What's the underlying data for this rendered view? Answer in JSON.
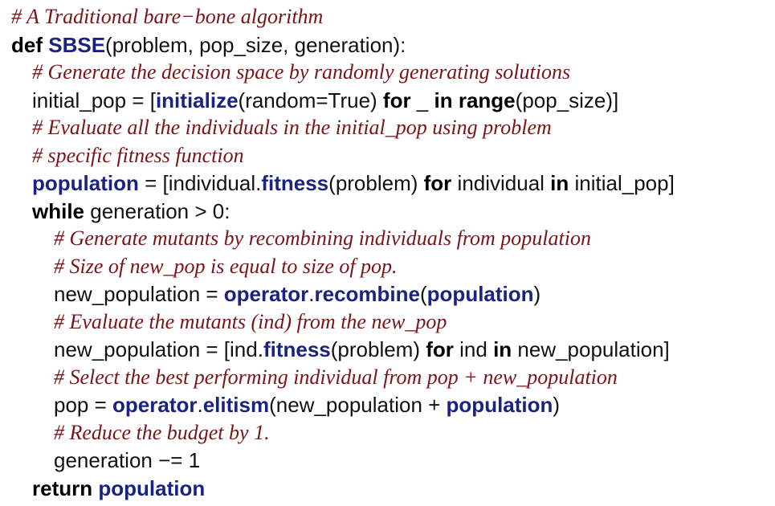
{
  "code": {
    "lines": [
      {
        "kind": "comment",
        "indent": 0,
        "text": "# A Traditional bare−bone algorithm"
      },
      {
        "kind": "code",
        "indent": 0,
        "tokens": [
          {
            "t": "def",
            "s": "kw"
          },
          {
            "t": " ",
            "s": "plain"
          },
          {
            "t": "SBSE",
            "s": "fn"
          },
          {
            "t": "(problem, pop_size, generation):",
            "s": "plain"
          }
        ]
      },
      {
        "kind": "comment",
        "indent": 1,
        "text": "# Generate the decision space by randomly generating solutions"
      },
      {
        "kind": "code",
        "indent": 1,
        "tokens": [
          {
            "t": "initial_pop = [",
            "s": "plain"
          },
          {
            "t": "initialize",
            "s": "fn"
          },
          {
            "t": "(random=True) ",
            "s": "plain"
          },
          {
            "t": "for",
            "s": "kw"
          },
          {
            "t": " _ ",
            "s": "plain"
          },
          {
            "t": "in",
            "s": "kw"
          },
          {
            "t": " ",
            "s": "plain"
          },
          {
            "t": "range",
            "s": "kw"
          },
          {
            "t": "(pop_size)]",
            "s": "plain"
          }
        ]
      },
      {
        "kind": "comment",
        "indent": 1,
        "text": "# Evaluate all the individuals in the initial_pop using problem"
      },
      {
        "kind": "comment",
        "indent": 1,
        "text": "# specific fitness function"
      },
      {
        "kind": "code",
        "indent": 1,
        "tokens": [
          {
            "t": "population",
            "s": "fn"
          },
          {
            "t": " = [individual.",
            "s": "plain"
          },
          {
            "t": "fitness",
            "s": "fn"
          },
          {
            "t": "(problem) ",
            "s": "plain"
          },
          {
            "t": "for",
            "s": "kw"
          },
          {
            "t": " individual ",
            "s": "plain"
          },
          {
            "t": "in",
            "s": "kw"
          },
          {
            "t": " initial_pop]",
            "s": "plain"
          }
        ]
      },
      {
        "kind": "code",
        "indent": 1,
        "tokens": [
          {
            "t": "while",
            "s": "kw"
          },
          {
            "t": " generation > 0:",
            "s": "plain"
          }
        ]
      },
      {
        "kind": "comment",
        "indent": 2,
        "text": "# Generate mutants by recombining individuals from population"
      },
      {
        "kind": "comment",
        "indent": 2,
        "text": "# Size of new_pop is equal to size of pop."
      },
      {
        "kind": "code",
        "indent": 2,
        "tokens": [
          {
            "t": "new_population = ",
            "s": "plain"
          },
          {
            "t": "operator",
            "s": "fn"
          },
          {
            "t": ".",
            "s": "plain"
          },
          {
            "t": "recombine",
            "s": "fn"
          },
          {
            "t": "(",
            "s": "plain"
          },
          {
            "t": "population",
            "s": "fn"
          },
          {
            "t": ")",
            "s": "plain"
          }
        ]
      },
      {
        "kind": "comment",
        "indent": 2,
        "text": "# Evaluate the mutants (ind) from the new_pop"
      },
      {
        "kind": "code",
        "indent": 2,
        "tokens": [
          {
            "t": "new_population = [ind.",
            "s": "plain"
          },
          {
            "t": "fitness",
            "s": "fn"
          },
          {
            "t": "(problem) ",
            "s": "plain"
          },
          {
            "t": "for",
            "s": "kw"
          },
          {
            "t": " ind ",
            "s": "plain"
          },
          {
            "t": "in",
            "s": "kw"
          },
          {
            "t": " new_population]",
            "s": "plain"
          }
        ]
      },
      {
        "kind": "comment",
        "indent": 2,
        "text": "# Select the best performing individual from pop + new_population"
      },
      {
        "kind": "code",
        "indent": 2,
        "tokens": [
          {
            "t": "pop = ",
            "s": "plain"
          },
          {
            "t": "operator",
            "s": "fn"
          },
          {
            "t": ".",
            "s": "plain"
          },
          {
            "t": "elitism",
            "s": "fn"
          },
          {
            "t": "(new_population + ",
            "s": "plain"
          },
          {
            "t": "population",
            "s": "fn"
          },
          {
            "t": ")",
            "s": "plain"
          }
        ]
      },
      {
        "kind": "comment",
        "indent": 2,
        "text": "# Reduce the budget by 1."
      },
      {
        "kind": "code",
        "indent": 2,
        "tokens": [
          {
            "t": "generation −= 1",
            "s": "plain"
          }
        ]
      },
      {
        "kind": "code",
        "indent": 1,
        "tokens": [
          {
            "t": "return",
            "s": "kw"
          },
          {
            "t": " ",
            "s": "plain"
          },
          {
            "t": "population",
            "s": "fn"
          }
        ]
      }
    ]
  },
  "colors": {
    "comment": "#7a1417",
    "keyword": "#000000",
    "identifier": "#1a237e",
    "text": "#111111",
    "background": "#ffffff"
  }
}
